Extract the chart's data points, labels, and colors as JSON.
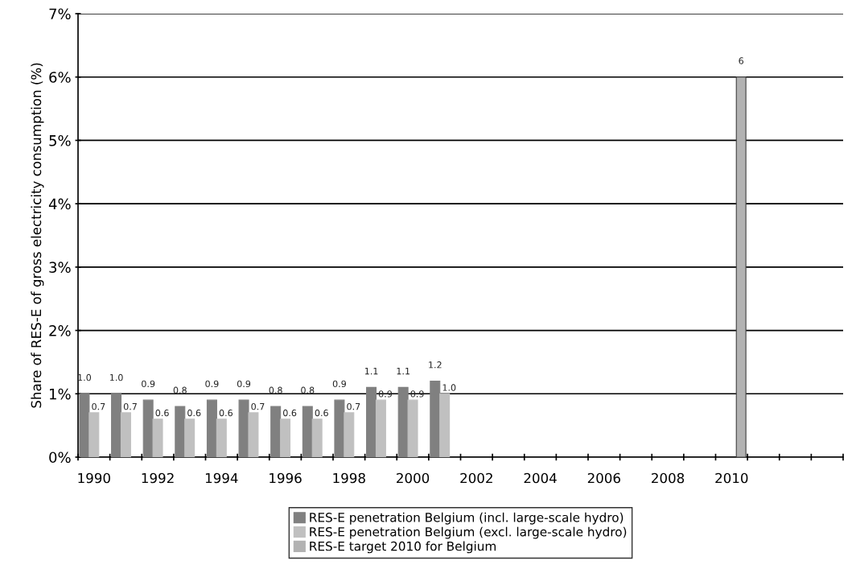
{
  "chart_data": {
    "type": "bar",
    "ylabel": "Share of RES-E of gross electricity consumption (%)",
    "categories": [
      "1990",
      null,
      "1992",
      null,
      "1994",
      null,
      "1996",
      null,
      "1998",
      null,
      "2000",
      null,
      "2002",
      null,
      "2004",
      null,
      "2006",
      null,
      "2008",
      null,
      "2010",
      null,
      null,
      null
    ],
    "series": [
      {
        "name": "RES-E penetration Belgium (incl. large-scale hydro)",
        "color": "#808080",
        "values": [
          1.0,
          1.0,
          0.9,
          0.8,
          0.9,
          0.9,
          0.8,
          0.8,
          0.9,
          1.1,
          1.1,
          1.2,
          null,
          null,
          null,
          null,
          null,
          null,
          null,
          null,
          null,
          null,
          null,
          null
        ],
        "value_labels": [
          "1.0",
          "1.0",
          "0.9",
          "0.8",
          "0.9",
          "0.9",
          "0.8",
          "0.8",
          "0.9",
          "1.1",
          "1.1",
          "1.2",
          null,
          null,
          null,
          null,
          null,
          null,
          null,
          null,
          null,
          null,
          null,
          null
        ]
      },
      {
        "name": "RES-E penetration Belgium (excl. large-scale hydro)",
        "color": "#c0c0c0",
        "values": [
          0.7,
          0.7,
          0.6,
          0.6,
          0.6,
          0.7,
          0.6,
          0.6,
          0.7,
          0.9,
          0.9,
          1.0,
          null,
          null,
          null,
          null,
          null,
          null,
          null,
          null,
          null,
          null,
          null,
          null
        ],
        "value_labels": [
          "0.7",
          "0.7",
          "0.6",
          "0.6",
          "0.6",
          "0.7",
          "0.6",
          "0.6",
          "0.7",
          "0.9",
          "0.9",
          "1.0",
          null,
          null,
          null,
          null,
          null,
          null,
          null,
          null,
          null,
          null,
          null,
          null
        ]
      },
      {
        "name": "RES-E target 2010 for Belgium",
        "color": "#b2b2b2",
        "values": [
          null,
          null,
          null,
          null,
          null,
          null,
          null,
          null,
          null,
          null,
          null,
          null,
          null,
          null,
          null,
          null,
          null,
          null,
          null,
          null,
          6,
          null,
          null,
          null
        ],
        "value_labels": [
          null,
          null,
          null,
          null,
          null,
          null,
          null,
          null,
          null,
          null,
          null,
          null,
          null,
          null,
          null,
          null,
          null,
          null,
          null,
          null,
          "6",
          null,
          null,
          null
        ]
      }
    ],
    "ylim": [
      0,
      7
    ],
    "yticks": [
      {
        "value": 0,
        "label": "0%"
      },
      {
        "value": 1,
        "label": "1%"
      },
      {
        "value": 2,
        "label": "2%"
      },
      {
        "value": 3,
        "label": "3%"
      },
      {
        "value": 4,
        "label": "4%"
      },
      {
        "value": 5,
        "label": "5%"
      },
      {
        "value": 6,
        "label": "6%"
      },
      {
        "value": 7,
        "label": "7%"
      }
    ],
    "grid": "y",
    "legend": "bottom"
  }
}
